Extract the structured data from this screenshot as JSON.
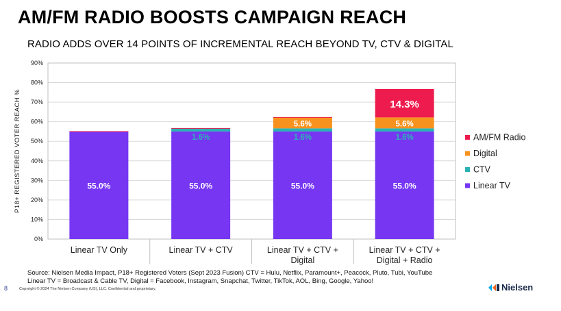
{
  "title": "AM/FM RADIO BOOSTS CAMPAIGN REACH",
  "subtitle": "RADIO ADDS OVER 14 POINTS OF INCREMENTAL REACH BEYOND TV, CTV & DIGITAL",
  "footer": {
    "source_line_1": "Source: Nielsen Media Impact, P18+ Registered Voters (Sept 2023 Fusion) CTV = Hulu, Netflix, Paramount+, Peacock, Pluto, Tubi, YouTube",
    "source_line_2": "Linear TV = Broadcast & Cable TV, Digital = Facebook, Instagram, Snapchat, Twitter, TikTok, AOL, Bing, Google, Yahoo!",
    "copyright": "Copyright © 2024 The Nielsen Company (US), LLC. Confidential and proprietary.",
    "page_number": "8",
    "brand": "Nielsen"
  },
  "chart_data": {
    "type": "bar",
    "stacked": true,
    "ylabel": "P18+ REGISTERED VOTER REACH %",
    "ylim": [
      0,
      90
    ],
    "yticks": [
      "0%",
      "10%",
      "20%",
      "30%",
      "40%",
      "50%",
      "60%",
      "70%",
      "80%",
      "90%"
    ],
    "grid": true,
    "legend": "right",
    "categories": [
      [
        "Linear TV Only"
      ],
      [
        "Linear TV + CTV"
      ],
      [
        "Linear TV + CTV +",
        "Digital"
      ],
      [
        "Linear TV + CTV +",
        "Digital + Radio"
      ]
    ],
    "series": [
      {
        "name": "Linear TV",
        "color": "#7636f2",
        "label_color": "#ffffff",
        "values": [
          55.0,
          55.0,
          55.0,
          55.0
        ],
        "labels": [
          "55.0%",
          "55.0%",
          "55.0%",
          "55.0%"
        ]
      },
      {
        "name": "CTV",
        "color": "#2ab3b5",
        "label_color": "#2ab3b5",
        "values": [
          0,
          1.6,
          1.6,
          1.6
        ],
        "labels": [
          "",
          "1.6%",
          "1.6%",
          "1.6%"
        ]
      },
      {
        "name": "Digital",
        "color": "#f7921e",
        "label_color": "#ffffff",
        "values": [
          0,
          0,
          5.6,
          5.6
        ],
        "labels": [
          "",
          "",
          "5.6%",
          "5.6%"
        ]
      },
      {
        "name": "AM/FM Radio",
        "color": "#ee1c4e",
        "label_color": "#ffffff",
        "values": [
          0,
          0,
          0,
          14.3
        ],
        "labels": [
          "",
          "",
          "",
          "14.3%"
        ]
      }
    ]
  }
}
